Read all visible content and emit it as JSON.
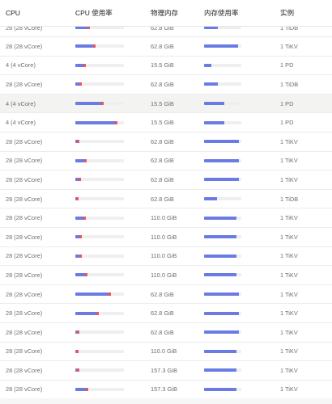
{
  "columns": {
    "cpu": "CPU",
    "cpu_usage": "CPU 使用率",
    "memory": "物理内存",
    "memory_usage": "内存使用率",
    "instance": "实例"
  },
  "rows": [
    {
      "cpu": "28 (28 vCore)",
      "cpu_usage_pct": 30,
      "memory": "62.8 GiB",
      "mem_usage_pct": 37,
      "instance": "1 TiDB"
    },
    {
      "cpu": "28 (28 vCore)",
      "cpu_usage_pct": 41,
      "memory": "62.8 GiB",
      "mem_usage_pct": 92,
      "instance": "1 TiKV"
    },
    {
      "cpu": "4 (4 vCore)",
      "cpu_usage_pct": 21,
      "memory": "15.5 GiB",
      "mem_usage_pct": 20,
      "instance": "1 PD"
    },
    {
      "cpu": "28 (28 vCore)",
      "cpu_usage_pct": 14,
      "memory": "62.8 GiB",
      "mem_usage_pct": 37,
      "instance": "1 TiDB"
    },
    {
      "cpu": "4 (4 vCore)",
      "cpu_usage_pct": 58,
      "memory": "15.5 GiB",
      "mem_usage_pct": 54,
      "instance": "1 PD"
    },
    {
      "cpu": "4 (4 vCore)",
      "cpu_usage_pct": 87,
      "memory": "15.5 GiB",
      "mem_usage_pct": 54,
      "instance": "1 PD"
    },
    {
      "cpu": "28 (28 vCore)",
      "cpu_usage_pct": 9,
      "memory": "62.8 GiB",
      "mem_usage_pct": 93,
      "instance": "1 TiKV"
    },
    {
      "cpu": "28 (28 vCore)",
      "cpu_usage_pct": 23,
      "memory": "62.8 GiB",
      "mem_usage_pct": 93,
      "instance": "1 TiKV"
    },
    {
      "cpu": "28 (28 vCore)",
      "cpu_usage_pct": 11,
      "memory": "62.8 GiB",
      "mem_usage_pct": 93,
      "instance": "1 TiKV"
    },
    {
      "cpu": "28 (28 vCore)",
      "cpu_usage_pct": 6,
      "memory": "62.8 GiB",
      "mem_usage_pct": 35,
      "instance": "1 TiDB"
    },
    {
      "cpu": "28 (28 vCore)",
      "cpu_usage_pct": 22,
      "memory": "110.0 GiB",
      "mem_usage_pct": 88,
      "instance": "1 TiKV"
    },
    {
      "cpu": "28 (28 vCore)",
      "cpu_usage_pct": 14,
      "memory": "110.0 GiB",
      "mem_usage_pct": 88,
      "instance": "1 TiKV"
    },
    {
      "cpu": "28 (28 vCore)",
      "cpu_usage_pct": 13,
      "memory": "110.0 GiB",
      "mem_usage_pct": 88,
      "instance": "1 TiKV"
    },
    {
      "cpu": "28 (28 vCore)",
      "cpu_usage_pct": 25,
      "memory": "110.0 GiB",
      "mem_usage_pct": 88,
      "instance": "1 TiKV"
    },
    {
      "cpu": "28 (28 vCore)",
      "cpu_usage_pct": 74,
      "memory": "62.8 GiB",
      "mem_usage_pct": 93,
      "instance": "1 TiKV"
    },
    {
      "cpu": "28 (28 vCore)",
      "cpu_usage_pct": 48,
      "memory": "62.8 GiB",
      "mem_usage_pct": 93,
      "instance": "1 TiKV"
    },
    {
      "cpu": "28 (28 vCore)",
      "cpu_usage_pct": 9,
      "memory": "62.8 GiB",
      "mem_usage_pct": 93,
      "instance": "1 TiKV"
    },
    {
      "cpu": "28 (28 vCore)",
      "cpu_usage_pct": 7,
      "memory": "110.0 GiB",
      "mem_usage_pct": 88,
      "instance": "1 TiKV"
    },
    {
      "cpu": "28 (28 vCore)",
      "cpu_usage_pct": 9,
      "memory": "157.3 GiB",
      "mem_usage_pct": 87,
      "instance": "1 TiKV"
    },
    {
      "cpu": "28 (28 vCore)",
      "cpu_usage_pct": 27,
      "memory": "157.3 GiB",
      "mem_usage_pct": 87,
      "instance": "1 TiKV"
    }
  ],
  "colors": {
    "usage_fill": "#6a7be4",
    "usage_hot": "#e9545c",
    "bar_track": "#efefef",
    "selected_row": "#f3f3f1"
  }
}
